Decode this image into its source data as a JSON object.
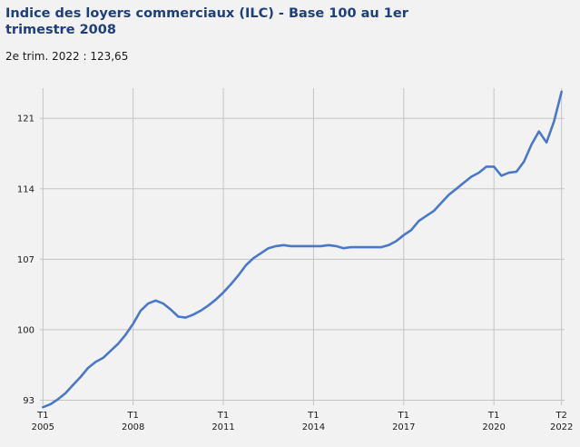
{
  "chart_data": {
    "type": "line",
    "title": "Indice des loyers commerciaux (ILC) - Base 100 au 1er trimestre 2008",
    "subtitle": "2e trim. 2022 : 123,65",
    "xlabel": "",
    "ylabel": "",
    "ylim": [
      92.5,
      124
    ],
    "yticks": [
      93,
      100,
      107,
      114,
      121
    ],
    "xticks": [
      {
        "x": 2005.0,
        "label": [
          "T1",
          "2005"
        ]
      },
      {
        "x": 2008.0,
        "label": [
          "T1",
          "2008"
        ]
      },
      {
        "x": 2011.0,
        "label": [
          "T1",
          "2011"
        ]
      },
      {
        "x": 2014.0,
        "label": [
          "T1",
          "2014"
        ]
      },
      {
        "x": 2017.0,
        "label": [
          "T1",
          "2017"
        ]
      },
      {
        "x": 2020.0,
        "label": [
          "T1",
          "2020"
        ]
      },
      {
        "x": 2022.25,
        "label": [
          "T2",
          "2022"
        ]
      }
    ],
    "xlim": [
      2004.9,
      2022.35
    ],
    "grid": true,
    "line_color": "#4a78c8",
    "series": [
      {
        "values": [
          [
            2005.0,
            92.3
          ],
          [
            2005.25,
            92.6
          ],
          [
            2005.5,
            93.1
          ],
          [
            2005.75,
            93.7
          ],
          [
            2006.0,
            94.5
          ],
          [
            2006.25,
            95.3
          ],
          [
            2006.5,
            96.2
          ],
          [
            2006.75,
            96.8
          ],
          [
            2007.0,
            97.2
          ],
          [
            2007.25,
            97.9
          ],
          [
            2007.5,
            98.6
          ],
          [
            2007.75,
            99.5
          ],
          [
            2008.0,
            100.6
          ],
          [
            2008.25,
            101.9
          ],
          [
            2008.5,
            102.6
          ],
          [
            2008.75,
            102.9
          ],
          [
            2009.0,
            102.6
          ],
          [
            2009.25,
            102.0
          ],
          [
            2009.5,
            101.3
          ],
          [
            2009.75,
            101.2
          ],
          [
            2010.0,
            101.5
          ],
          [
            2010.25,
            101.9
          ],
          [
            2010.5,
            102.4
          ],
          [
            2010.75,
            103.0
          ],
          [
            2011.0,
            103.7
          ],
          [
            2011.25,
            104.5
          ],
          [
            2011.5,
            105.4
          ],
          [
            2011.75,
            106.4
          ],
          [
            2012.0,
            107.1
          ],
          [
            2012.25,
            107.6
          ],
          [
            2012.5,
            108.1
          ],
          [
            2012.75,
            108.3
          ],
          [
            2013.0,
            108.4
          ],
          [
            2013.25,
            108.3
          ],
          [
            2013.5,
            108.3
          ],
          [
            2013.75,
            108.3
          ],
          [
            2014.0,
            108.3
          ],
          [
            2014.25,
            108.3
          ],
          [
            2014.5,
            108.4
          ],
          [
            2014.75,
            108.3
          ],
          [
            2015.0,
            108.1
          ],
          [
            2015.25,
            108.2
          ],
          [
            2015.5,
            108.2
          ],
          [
            2015.75,
            108.2
          ],
          [
            2016.0,
            108.2
          ],
          [
            2016.25,
            108.2
          ],
          [
            2016.5,
            108.4
          ],
          [
            2016.75,
            108.8
          ],
          [
            2017.0,
            109.4
          ],
          [
            2017.25,
            109.9
          ],
          [
            2017.5,
            110.8
          ],
          [
            2017.75,
            111.3
          ],
          [
            2018.0,
            111.8
          ],
          [
            2018.25,
            112.6
          ],
          [
            2018.5,
            113.4
          ],
          [
            2018.75,
            114.0
          ],
          [
            2019.0,
            114.6
          ],
          [
            2019.25,
            115.2
          ],
          [
            2019.5,
            115.6
          ],
          [
            2019.75,
            116.2
          ],
          [
            2020.0,
            116.2
          ],
          [
            2020.25,
            115.3
          ],
          [
            2020.5,
            115.6
          ],
          [
            2020.75,
            115.7
          ],
          [
            2021.0,
            116.7
          ],
          [
            2021.25,
            118.4
          ],
          [
            2021.5,
            119.7
          ],
          [
            2021.75,
            118.6
          ],
          [
            2022.0,
            120.7
          ],
          [
            2022.25,
            123.65
          ]
        ]
      }
    ]
  }
}
